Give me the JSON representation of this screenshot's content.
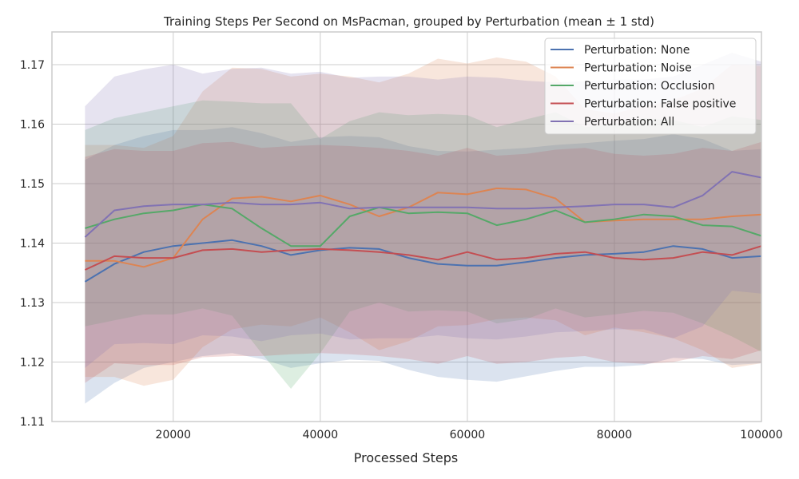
{
  "chart_data": {
    "type": "line",
    "title": "Training Steps Per Second on MsPacman, grouped by Perturbation (mean ± 1 std)",
    "xlabel": "Processed Steps",
    "ylabel": "",
    "xlim": [
      3500,
      100000
    ],
    "ylim": [
      1.11,
      1.1755
    ],
    "x_ticks": [
      20000,
      40000,
      60000,
      80000,
      100000
    ],
    "x_tick_labels": [
      "20000",
      "40000",
      "60000",
      "80000",
      "100000"
    ],
    "y_ticks": [
      1.11,
      1.12,
      1.13,
      1.14,
      1.15,
      1.16,
      1.17
    ],
    "y_tick_labels": [
      "1.11",
      "1.12",
      "1.13",
      "1.14",
      "1.15",
      "1.16",
      "1.17"
    ],
    "grid": true,
    "legend_position": "top-right",
    "x": [
      8000,
      12000,
      16000,
      20000,
      24000,
      28000,
      32000,
      36000,
      40000,
      44000,
      48000,
      52000,
      56000,
      60000,
      64000,
      68000,
      72000,
      76000,
      80000,
      84000,
      88000,
      92000,
      96000,
      100000
    ],
    "series": [
      {
        "name": "Perturbation: None",
        "color": "#4c72b0",
        "values": [
          1.1335,
          1.1365,
          1.1385,
          1.1395,
          1.14,
          1.1405,
          1.1395,
          1.138,
          1.1388,
          1.1392,
          1.139,
          1.1375,
          1.1365,
          1.1362,
          1.1362,
          1.1368,
          1.1375,
          1.138,
          1.1382,
          1.1385,
          1.1395,
          1.139,
          1.1375,
          1.1378
        ],
        "std": [
          0.0205,
          0.02,
          0.0195,
          0.0195,
          0.019,
          0.019,
          0.019,
          0.019,
          0.019,
          0.0188,
          0.0188,
          0.0188,
          0.019,
          0.0192,
          0.0195,
          0.0192,
          0.019,
          0.0188,
          0.019,
          0.019,
          0.0188,
          0.0185,
          0.018,
          0.018
        ]
      },
      {
        "name": "Perturbation: Noise",
        "color": "#dd8452",
        "values": [
          1.137,
          1.137,
          1.136,
          1.1375,
          1.144,
          1.1475,
          1.1478,
          1.147,
          1.148,
          1.1465,
          1.1445,
          1.146,
          1.1485,
          1.1482,
          1.1492,
          1.149,
          1.1475,
          1.1435,
          1.1438,
          1.144,
          1.144,
          1.144,
          1.1445,
          1.1448
        ],
        "std": [
          0.0195,
          0.0195,
          0.02,
          0.0205,
          0.0215,
          0.022,
          0.0215,
          0.021,
          0.0205,
          0.0215,
          0.0225,
          0.0225,
          0.0225,
          0.022,
          0.022,
          0.0215,
          0.0205,
          0.019,
          0.018,
          0.019,
          0.02,
          0.022,
          0.0255,
          0.025
        ]
      },
      {
        "name": "Perturbation: Occlusion",
        "color": "#55a868",
        "values": [
          1.1425,
          1.144,
          1.145,
          1.1455,
          1.1465,
          1.1458,
          1.1425,
          1.1395,
          1.1395,
          1.1445,
          1.146,
          1.145,
          1.1452,
          1.145,
          1.143,
          1.144,
          1.1455,
          1.1435,
          1.144,
          1.1448,
          1.1445,
          1.143,
          1.1428,
          1.1412
        ],
        "std": [
          0.0165,
          0.017,
          0.017,
          0.0175,
          0.0175,
          0.018,
          0.021,
          0.024,
          0.018,
          0.016,
          0.016,
          0.0165,
          0.0165,
          0.0165,
          0.0165,
          0.0168,
          0.0165,
          0.016,
          0.016,
          0.0162,
          0.0162,
          0.0165,
          0.0185,
          0.0195
        ]
      },
      {
        "name": "Perturbation: False positive",
        "color": "#c44e52",
        "values": [
          1.1355,
          1.1378,
          1.1375,
          1.1375,
          1.1388,
          1.139,
          1.1385,
          1.1388,
          1.139,
          1.1388,
          1.1385,
          1.138,
          1.1372,
          1.1385,
          1.1372,
          1.1375,
          1.1382,
          1.1385,
          1.1375,
          1.1372,
          1.1375,
          1.1385,
          1.138,
          1.1395
        ],
        "std": [
          0.019,
          0.018,
          0.018,
          0.018,
          0.018,
          0.018,
          0.0175,
          0.0175,
          0.0175,
          0.0175,
          0.0175,
          0.0175,
          0.0175,
          0.0175,
          0.0175,
          0.0175,
          0.0175,
          0.0175,
          0.0175,
          0.0175,
          0.0175,
          0.0175,
          0.0175,
          0.0175
        ]
      },
      {
        "name": "Perturbation: All",
        "color": "#8172b3",
        "values": [
          1.141,
          1.1455,
          1.1462,
          1.1465,
          1.1465,
          1.1468,
          1.1465,
          1.1465,
          1.1468,
          1.1458,
          1.146,
          1.146,
          1.146,
          1.146,
          1.1458,
          1.1458,
          1.146,
          1.1462,
          1.1465,
          1.1465,
          1.146,
          1.148,
          1.152,
          1.151
        ],
        "std": [
          0.022,
          0.0225,
          0.023,
          0.0235,
          0.022,
          0.0225,
          0.023,
          0.022,
          0.022,
          0.022,
          0.022,
          0.022,
          0.0215,
          0.022,
          0.022,
          0.0215,
          0.021,
          0.021,
          0.021,
          0.021,
          0.022,
          0.022,
          0.02,
          0.0195
        ]
      }
    ]
  }
}
